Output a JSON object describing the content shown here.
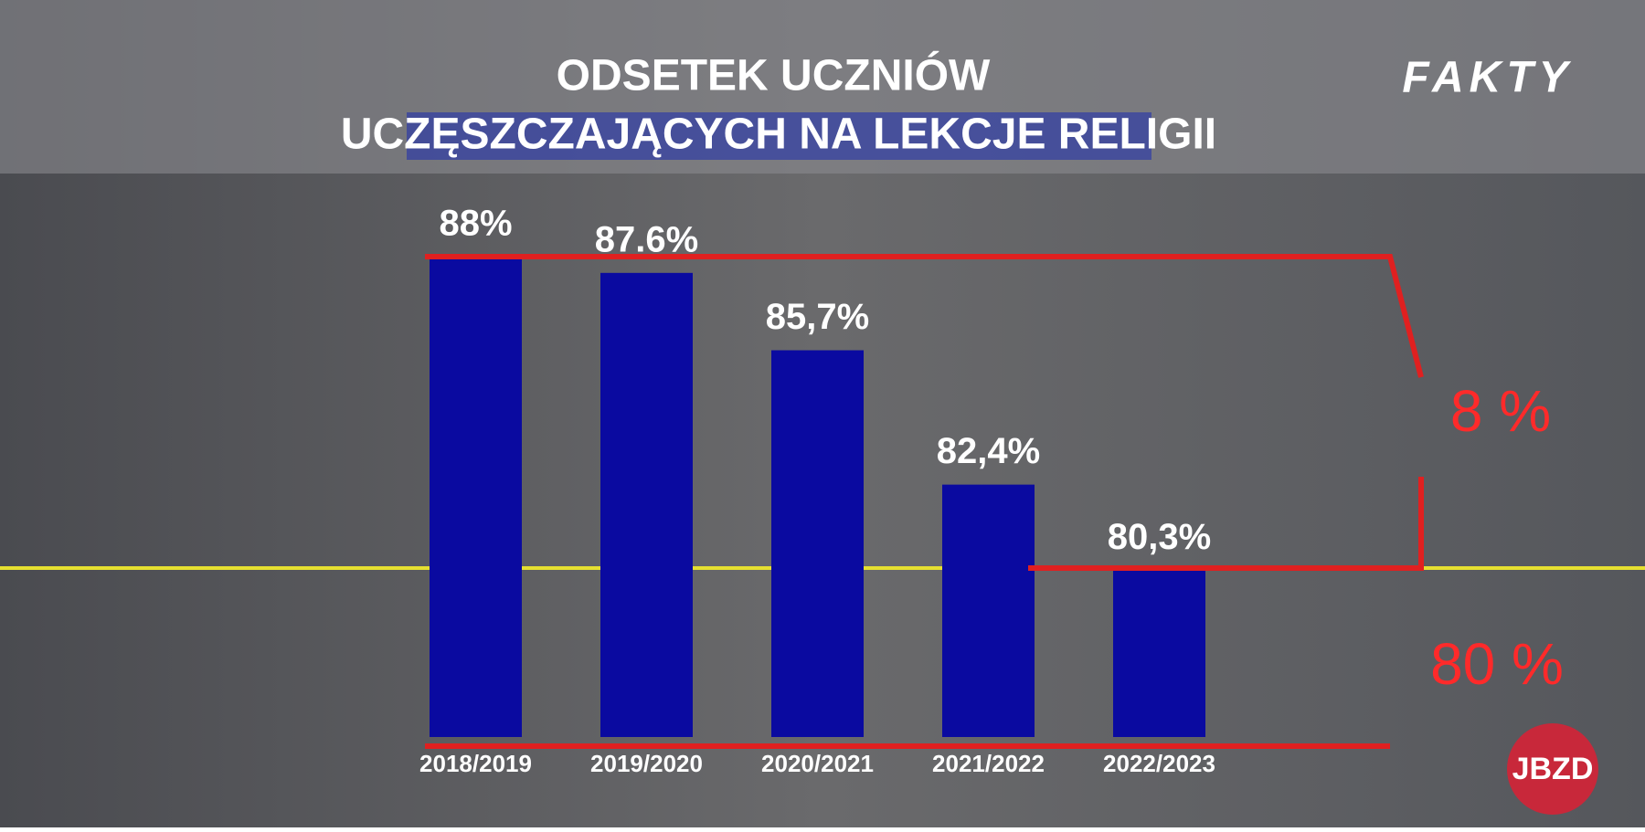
{
  "header": {
    "logo": "FAKTY"
  },
  "watermark": "JBZD",
  "chart_data": {
    "type": "bar",
    "title": "ODSETEK UCZNIÓW",
    "subtitle": "UCZĘSZCZAJĄCYCH NA LEKCJE RELIGII",
    "categories": [
      "2018/2019",
      "2019/2020",
      "2020/2021",
      "2021/2022",
      "2022/2023"
    ],
    "values": [
      88,
      87.6,
      85.7,
      82.4,
      80.3
    ],
    "value_labels": [
      "88%",
      "87.6%",
      "85,7%",
      "82,4%",
      "80,3%"
    ],
    "color": "#0a0aa0",
    "ylim": [
      76.2,
      88
    ],
    "annotations": [
      "8 %",
      "80 %"
    ]
  }
}
